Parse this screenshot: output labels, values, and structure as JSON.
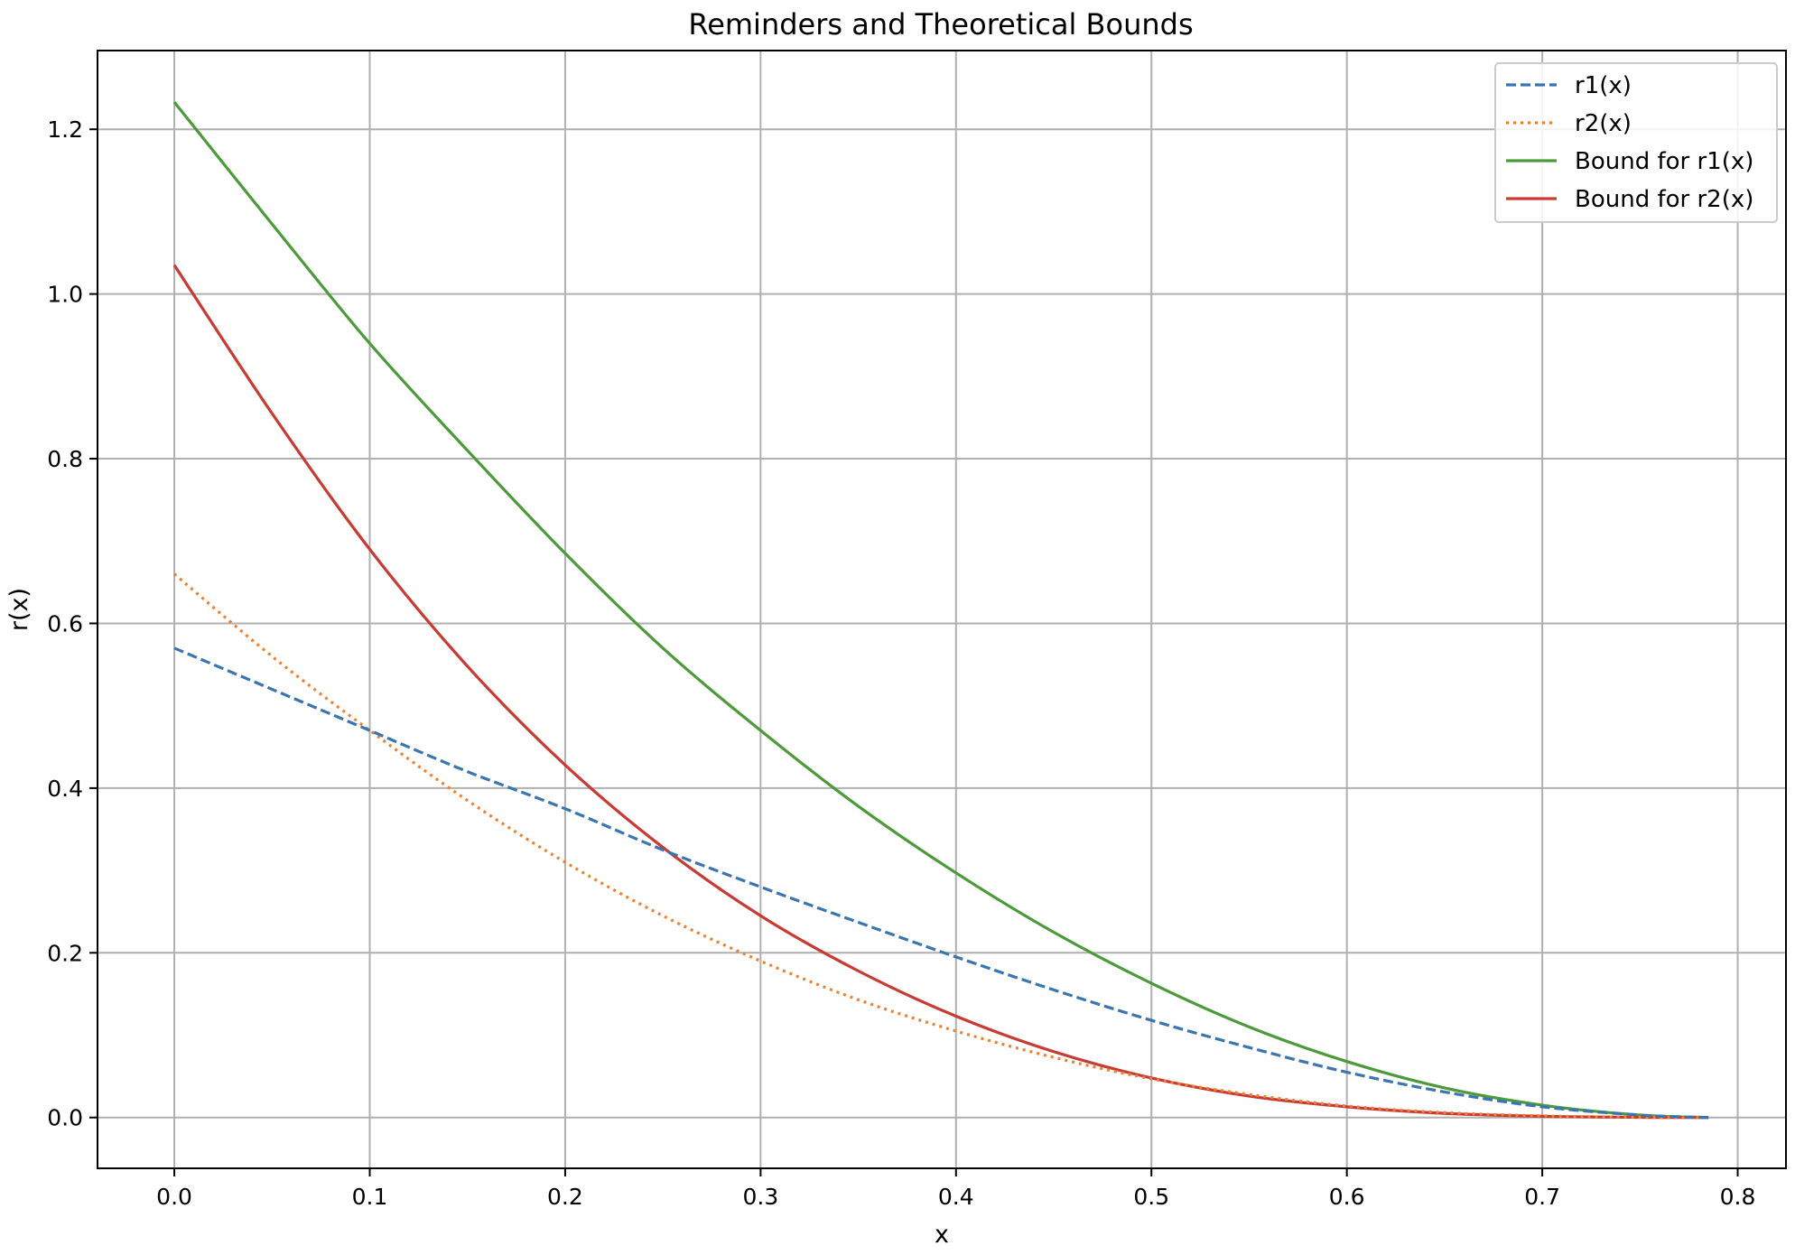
{
  "chart_data": {
    "type": "line",
    "title": "Reminders and Theoretical Bounds",
    "xlabel": "x",
    "ylabel": "r(x)",
    "xlim": [
      -0.0393,
      0.8247
    ],
    "ylim": [
      -0.0617,
      1.2956
    ],
    "xticks": [
      "0.0",
      "0.1",
      "0.2",
      "0.3",
      "0.4",
      "0.5",
      "0.6",
      "0.7",
      "0.8"
    ],
    "yticks": [
      "0.0",
      "0.2",
      "0.4",
      "0.6",
      "0.8",
      "1.0",
      "1.2"
    ],
    "grid": true,
    "legend_position": "top-right",
    "series": [
      {
        "name": "r1(x)",
        "color": "#3a75b0",
        "style": "dashed",
        "x": [
          0.0,
          0.05,
          0.1,
          0.15,
          0.2,
          0.25,
          0.3,
          0.35,
          0.4,
          0.45,
          0.5,
          0.55,
          0.6,
          0.65,
          0.7,
          0.75,
          0.785
        ],
        "y": [
          0.57,
          0.52,
          0.47,
          0.42,
          0.375,
          0.325,
          0.28,
          0.237,
          0.195,
          0.155,
          0.118,
          0.085,
          0.055,
          0.031,
          0.013,
          0.003,
          0.0
        ]
      },
      {
        "name": "r2(x)",
        "color": "#f08030",
        "style": "dotted",
        "x": [
          0.0,
          0.05,
          0.1,
          0.15,
          0.2,
          0.25,
          0.3,
          0.35,
          0.4,
          0.45,
          0.5,
          0.55,
          0.6,
          0.65,
          0.7,
          0.75,
          0.785
        ],
        "y": [
          0.66,
          0.56,
          0.47,
          0.385,
          0.31,
          0.245,
          0.19,
          0.143,
          0.105,
          0.073,
          0.047,
          0.028,
          0.014,
          0.006,
          0.002,
          0.0003,
          0.0
        ]
      },
      {
        "name": "Bound for r1(x)",
        "color": "#4c9a3a",
        "style": "solid",
        "x": [
          0.0,
          0.05,
          0.1,
          0.15,
          0.2,
          0.25,
          0.3,
          0.35,
          0.4,
          0.45,
          0.5,
          0.55,
          0.6,
          0.65,
          0.7,
          0.75,
          0.785
        ],
        "y": [
          1.233,
          1.085,
          0.94,
          0.81,
          0.685,
          0.57,
          0.47,
          0.378,
          0.297,
          0.225,
          0.163,
          0.11,
          0.068,
          0.036,
          0.015,
          0.003,
          0.0
        ]
      },
      {
        "name": "Bound for r2(x)",
        "color": "#c83a32",
        "style": "solid",
        "x": [
          0.0,
          0.05,
          0.1,
          0.15,
          0.2,
          0.25,
          0.3,
          0.35,
          0.4,
          0.45,
          0.5,
          0.55,
          0.6,
          0.65,
          0.7,
          0.75,
          0.785
        ],
        "y": [
          1.035,
          0.855,
          0.69,
          0.548,
          0.428,
          0.328,
          0.245,
          0.178,
          0.123,
          0.08,
          0.048,
          0.026,
          0.013,
          0.005,
          0.0015,
          0.0002,
          0.0
        ]
      }
    ]
  }
}
